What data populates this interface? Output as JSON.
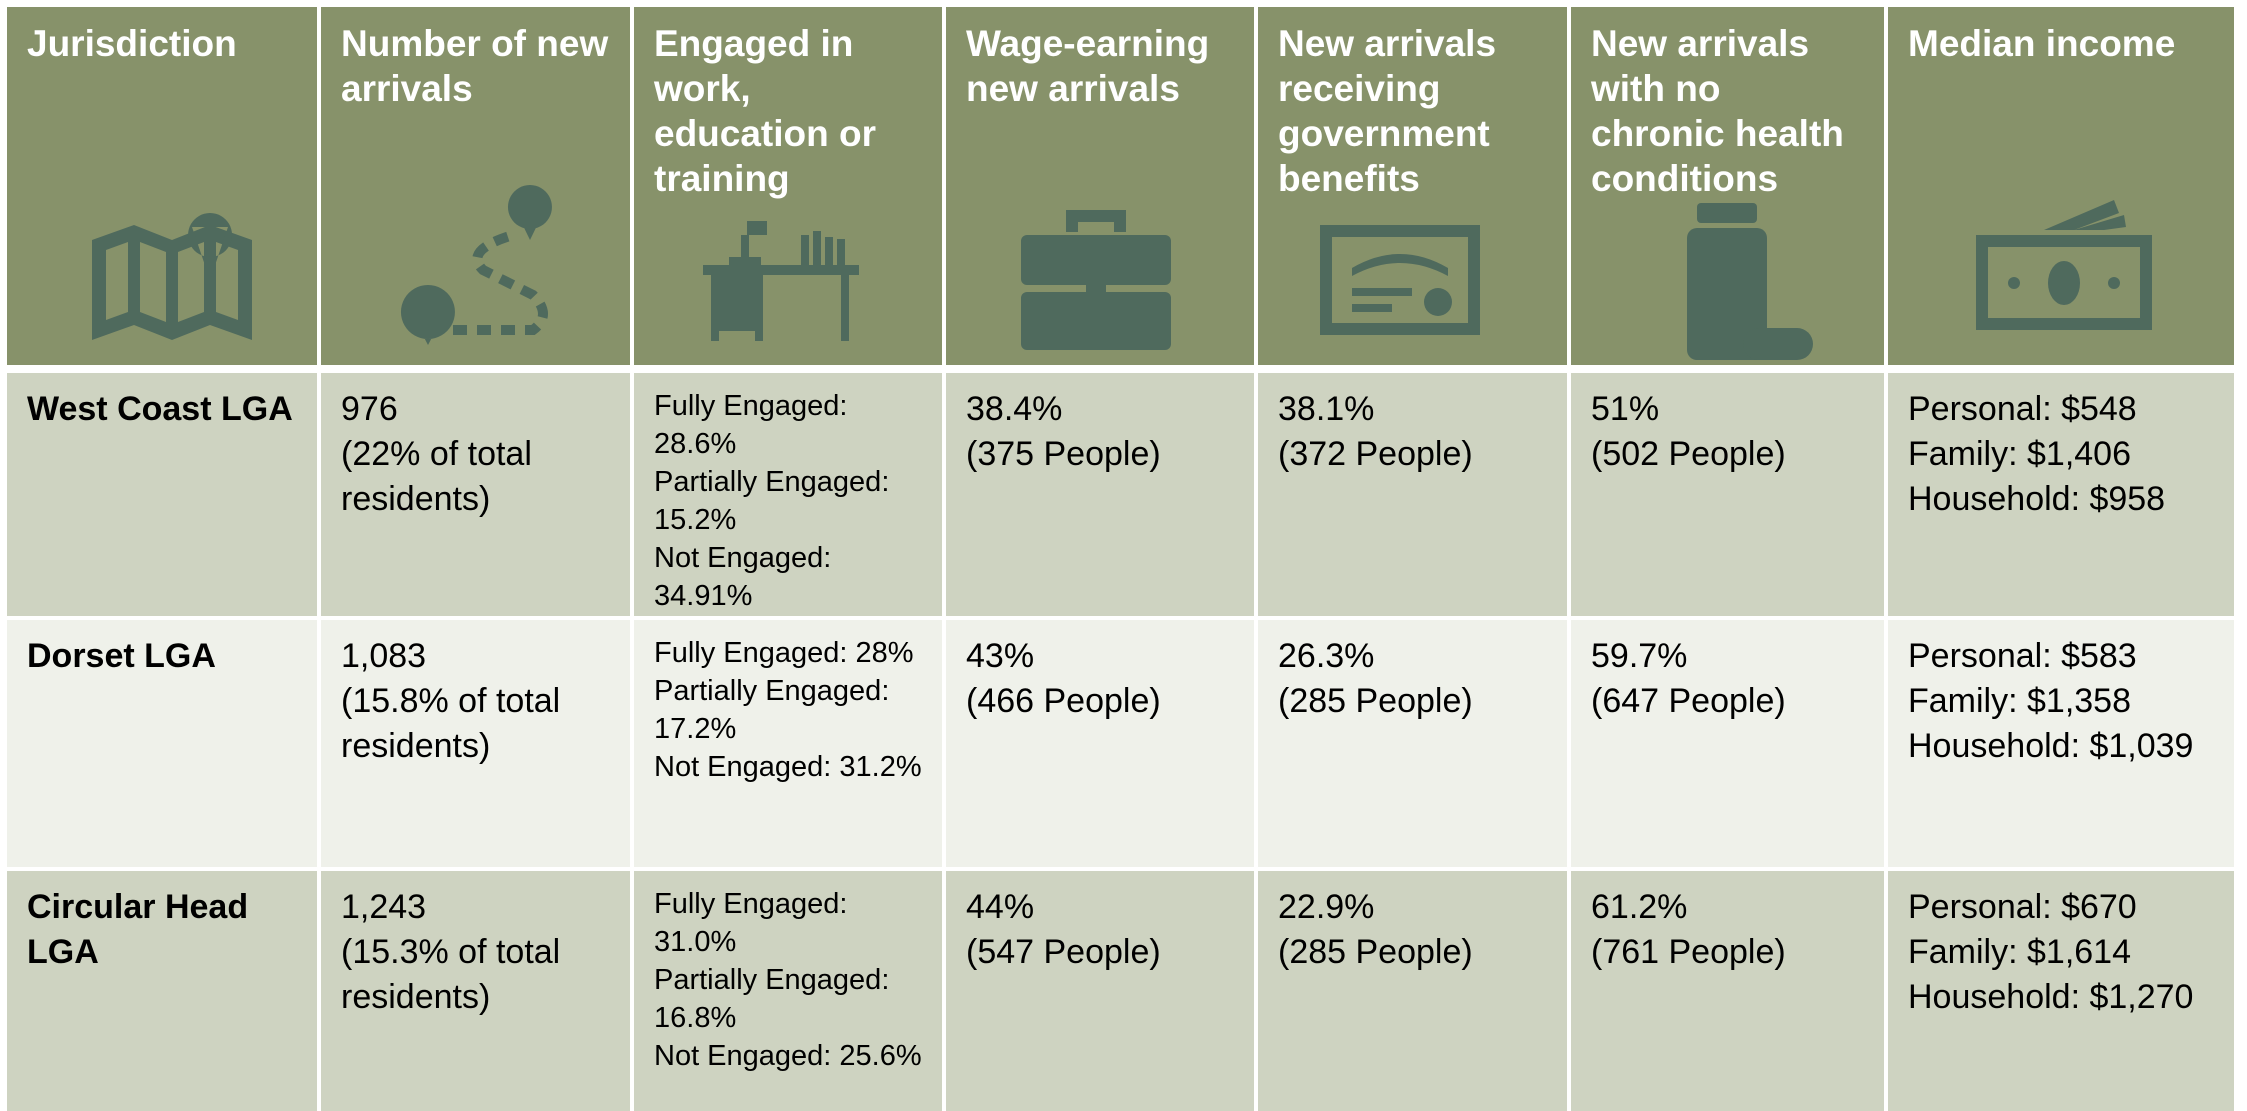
{
  "table": {
    "headers": [
      "Jurisdiction",
      "Number of new arrivals",
      "Engaged in work, education or training",
      "Wage-earning new arrivals",
      "New arrivals receiving government benefits",
      "New arrivals with no chronic health conditions",
      "Median income"
    ],
    "rows": [
      [
        [
          "West Coast LGA"
        ],
        [
          "976",
          "(22% of total residents)"
        ],
        [
          "Fully Engaged: 28.6%",
          "Partially Engaged: 15.2%",
          "Not Engaged: 34.91%"
        ],
        [
          "38.4%",
          "(375 People)"
        ],
        [
          "38.1%",
          "(372 People)"
        ],
        [
          "51%",
          "(502 People)"
        ],
        [
          "Personal: $548",
          "Family: $1,406",
          "Household: $958"
        ]
      ],
      [
        [
          "Dorset LGA"
        ],
        [
          "1,083",
          "(15.8% of total residents)"
        ],
        [
          "Fully Engaged: 28%",
          "Partially Engaged: 17.2%",
          "Not Engaged: 31.2%"
        ],
        [
          "43%",
          "(466 People)"
        ],
        [
          "26.3%",
          "(285 People)"
        ],
        [
          "59.7%",
          "(647 People)"
        ],
        [
          "Personal: $583",
          "Family: $1,358",
          "Household: $1,039"
        ]
      ],
      [
        [
          "Circular Head LGA"
        ],
        [
          "1,243",
          "(15.3% of total residents)"
        ],
        [
          "Fully Engaged: 31.0%",
          "Partially Engaged: 16.8%",
          "Not Engaged: 25.6%"
        ],
        [
          "44%",
          "(547 People)"
        ],
        [
          "22.9%",
          "(285 People)"
        ],
        [
          "61.2%",
          "(761 People)"
        ],
        [
          "Personal: $670",
          "Family: $1,614",
          "Household: $1,270"
        ]
      ]
    ]
  }
}
